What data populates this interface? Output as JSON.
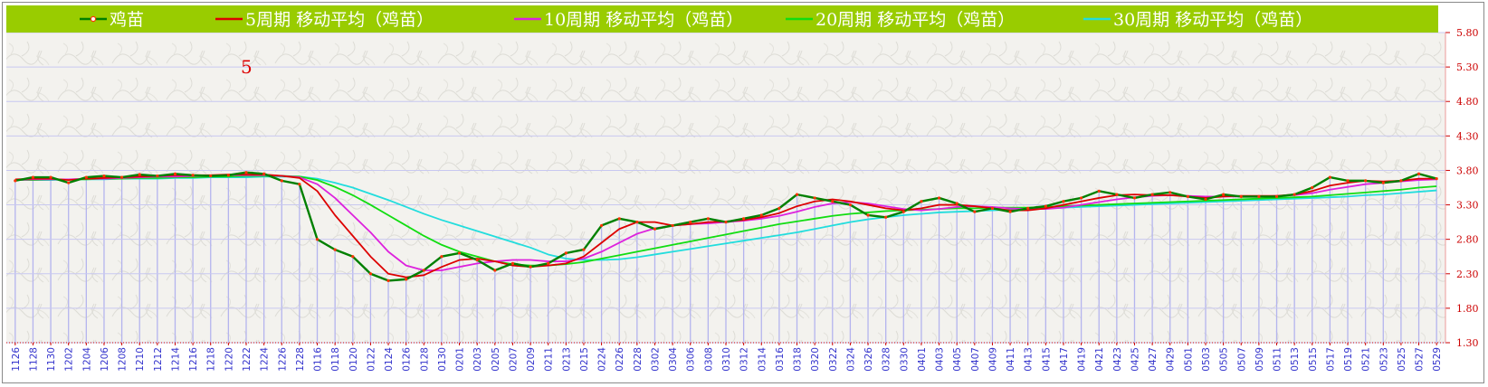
{
  "chart_data": {
    "type": "line",
    "title": "",
    "xlabel": "",
    "ylabel": "",
    "annotation": "5",
    "ylim": [
      1.3,
      5.8
    ],
    "yticks": [
      "5.80",
      "5.30",
      "4.80",
      "4.30",
      "3.80",
      "3.30",
      "2.80",
      "2.30",
      "1.80",
      "1.30"
    ],
    "grid": true,
    "legend_position": "top",
    "colors": {
      "legend_bg": "#99cc00",
      "axis_label": "#cc0000",
      "date_label": "#3333cc",
      "bar": "#b4b4ee",
      "price": "#008000",
      "price_marker": "#ff3300"
    },
    "x": [
      "1126",
      "1128",
      "1130",
      "1202",
      "1204",
      "1206",
      "1208",
      "1210",
      "1212",
      "1214",
      "1216",
      "1218",
      "1220",
      "1222",
      "1224",
      "1226",
      "1228",
      "0116",
      "0118",
      "0120",
      "0122",
      "0124",
      "0126",
      "0128",
      "0130",
      "0201",
      "0203",
      "0205",
      "0207",
      "0209",
      "0211",
      "0213",
      "0215",
      "0224",
      "0226",
      "0228",
      "0302",
      "0304",
      "0306",
      "0308",
      "0310",
      "0312",
      "0314",
      "0316",
      "0318",
      "0320",
      "0322",
      "0324",
      "0326",
      "0328",
      "0330",
      "0401",
      "0403",
      "0405",
      "0407",
      "0409",
      "0411",
      "0413",
      "0415",
      "0417",
      "0419",
      "0421",
      "0423",
      "0425",
      "0427",
      "0429",
      "0501",
      "0503",
      "0505",
      "0507",
      "0509",
      "0511",
      "0513",
      "0515",
      "0517",
      "0519",
      "0521",
      "0523",
      "0525",
      "0527",
      "0529"
    ],
    "series": [
      {
        "name": "鸡苗",
        "color": "#008000",
        "markers": true,
        "values": [
          3.65,
          3.7,
          3.7,
          3.62,
          3.7,
          3.72,
          3.7,
          3.74,
          3.72,
          3.75,
          3.73,
          3.72,
          3.73,
          3.77,
          3.75,
          3.65,
          3.6,
          2.8,
          2.65,
          2.55,
          2.3,
          2.2,
          2.22,
          2.35,
          2.55,
          2.6,
          2.5,
          2.35,
          2.45,
          2.4,
          2.45,
          2.6,
          2.65,
          3.0,
          3.1,
          3.05,
          2.95,
          3.0,
          3.05,
          3.1,
          3.05,
          3.1,
          3.15,
          3.25,
          3.45,
          3.4,
          3.35,
          3.3,
          3.15,
          3.12,
          3.2,
          3.35,
          3.4,
          3.32,
          3.2,
          3.25,
          3.2,
          3.25,
          3.28,
          3.35,
          3.4,
          3.5,
          3.45,
          3.4,
          3.45,
          3.48,
          3.42,
          3.38,
          3.45,
          3.42,
          3.42,
          3.42,
          3.45,
          3.55,
          3.7,
          3.65,
          3.65,
          3.62,
          3.65,
          3.75,
          3.68
        ]
      },
      {
        "name": "5周期 移动平均（鸡苗）",
        "color": "#dd0000",
        "markers": false,
        "values": [
          3.67,
          3.68,
          3.68,
          3.66,
          3.68,
          3.69,
          3.7,
          3.71,
          3.72,
          3.73,
          3.73,
          3.73,
          3.74,
          3.74,
          3.74,
          3.72,
          3.69,
          3.5,
          3.15,
          2.85,
          2.55,
          2.3,
          2.25,
          2.28,
          2.4,
          2.5,
          2.52,
          2.48,
          2.42,
          2.4,
          2.42,
          2.45,
          2.55,
          2.75,
          2.95,
          3.05,
          3.05,
          3.0,
          3.02,
          3.05,
          3.06,
          3.08,
          3.12,
          3.18,
          3.28,
          3.35,
          3.38,
          3.35,
          3.3,
          3.25,
          3.22,
          3.25,
          3.3,
          3.3,
          3.28,
          3.25,
          3.22,
          3.22,
          3.25,
          3.3,
          3.35,
          3.4,
          3.44,
          3.45,
          3.44,
          3.44,
          3.42,
          3.4,
          3.42,
          3.43,
          3.43,
          3.43,
          3.45,
          3.5,
          3.58,
          3.62,
          3.65,
          3.64,
          3.65,
          3.68,
          3.68
        ]
      },
      {
        "name": "10周期 移动平均（鸡苗）",
        "color": "#dd22dd",
        "markers": false,
        "values": [
          3.66,
          3.67,
          3.67,
          3.67,
          3.68,
          3.68,
          3.69,
          3.7,
          3.71,
          3.71,
          3.72,
          3.72,
          3.73,
          3.73,
          3.73,
          3.72,
          3.7,
          3.6,
          3.4,
          3.15,
          2.9,
          2.62,
          2.42,
          2.35,
          2.35,
          2.4,
          2.45,
          2.48,
          2.5,
          2.5,
          2.48,
          2.48,
          2.52,
          2.62,
          2.75,
          2.88,
          2.96,
          3.0,
          3.02,
          3.03,
          3.05,
          3.07,
          3.1,
          3.14,
          3.2,
          3.27,
          3.32,
          3.34,
          3.32,
          3.28,
          3.24,
          3.22,
          3.24,
          3.27,
          3.28,
          3.27,
          3.25,
          3.24,
          3.24,
          3.26,
          3.3,
          3.34,
          3.38,
          3.41,
          3.43,
          3.44,
          3.43,
          3.42,
          3.42,
          3.42,
          3.42,
          3.43,
          3.44,
          3.47,
          3.52,
          3.56,
          3.6,
          3.62,
          3.64,
          3.66,
          3.67
        ]
      },
      {
        "name": "20周期 移动平均（鸡苗）",
        "color": "#11dd11",
        "markers": false,
        "values": [
          3.66,
          3.66,
          3.67,
          3.67,
          3.67,
          3.68,
          3.68,
          3.69,
          3.69,
          3.7,
          3.7,
          3.71,
          3.71,
          3.72,
          3.72,
          3.72,
          3.71,
          3.66,
          3.56,
          3.44,
          3.3,
          3.15,
          3.0,
          2.85,
          2.72,
          2.62,
          2.55,
          2.48,
          2.44,
          2.42,
          2.42,
          2.44,
          2.47,
          2.52,
          2.57,
          2.62,
          2.67,
          2.72,
          2.77,
          2.82,
          2.87,
          2.92,
          2.97,
          3.02,
          3.06,
          3.1,
          3.14,
          3.17,
          3.19,
          3.21,
          3.22,
          3.23,
          3.24,
          3.25,
          3.25,
          3.26,
          3.26,
          3.26,
          3.27,
          3.28,
          3.29,
          3.3,
          3.31,
          3.32,
          3.33,
          3.34,
          3.35,
          3.36,
          3.37,
          3.38,
          3.39,
          3.4,
          3.41,
          3.42,
          3.44,
          3.46,
          3.48,
          3.5,
          3.52,
          3.55,
          3.57
        ]
      },
      {
        "name": "30周期 移动平均（鸡苗）",
        "color": "#22dddd",
        "markers": false,
        "values": [
          3.66,
          3.66,
          3.66,
          3.67,
          3.67,
          3.67,
          3.68,
          3.68,
          3.68,
          3.69,
          3.69,
          3.7,
          3.7,
          3.7,
          3.71,
          3.71,
          3.71,
          3.68,
          3.62,
          3.55,
          3.46,
          3.37,
          3.27,
          3.17,
          3.08,
          3.0,
          2.92,
          2.84,
          2.76,
          2.68,
          2.58,
          2.52,
          2.5,
          2.5,
          2.51,
          2.54,
          2.58,
          2.62,
          2.66,
          2.7,
          2.74,
          2.78,
          2.82,
          2.86,
          2.9,
          2.95,
          3.0,
          3.05,
          3.09,
          3.12,
          3.15,
          3.17,
          3.19,
          3.2,
          3.21,
          3.22,
          3.23,
          3.24,
          3.25,
          3.26,
          3.27,
          3.28,
          3.29,
          3.3,
          3.31,
          3.32,
          3.33,
          3.34,
          3.35,
          3.36,
          3.37,
          3.38,
          3.39,
          3.4,
          3.41,
          3.42,
          3.44,
          3.45,
          3.47,
          3.49,
          3.51
        ]
      }
    ]
  }
}
